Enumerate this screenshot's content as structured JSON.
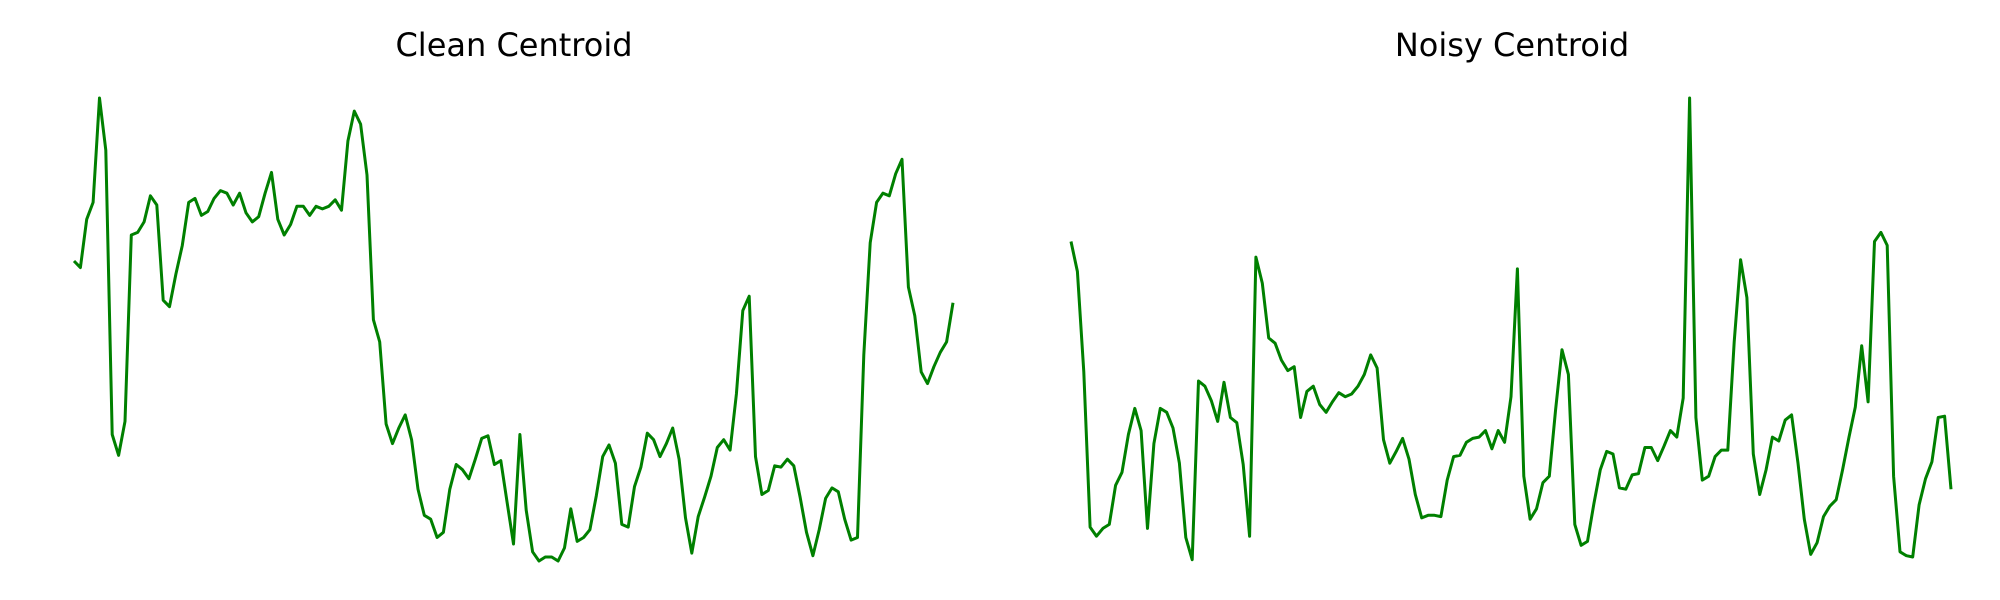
{
  "chart_data": [
    {
      "type": "line",
      "title": "Clean Centroid",
      "color": "#008000",
      "ylim": [
        20,
        395
      ],
      "values": [
        260,
        255,
        292,
        305,
        385,
        345,
        127,
        111,
        137,
        280,
        282,
        290,
        310,
        303,
        230,
        225,
        250,
        272,
        305,
        308,
        295,
        298,
        308,
        314,
        312,
        303,
        312,
        297,
        290,
        294,
        312,
        328,
        292,
        280,
        288,
        302,
        302,
        295,
        302,
        300,
        302,
        307,
        299,
        352,
        375,
        365,
        326,
        215,
        198,
        135,
        120,
        132,
        142,
        123,
        85,
        65,
        62,
        48,
        52,
        85,
        104,
        100,
        93,
        108,
        124,
        126,
        104,
        107,
        75,
        43,
        127,
        69,
        37,
        30,
        33,
        33,
        30,
        40,
        70,
        45,
        48,
        54,
        80,
        110,
        119,
        105,
        58,
        56,
        87,
        102,
        128,
        123,
        110,
        120,
        132,
        108,
        63,
        36,
        64,
        79,
        95,
        117,
        123,
        115,
        158,
        222,
        233,
        110,
        81,
        84,
        103,
        102,
        108,
        103,
        79,
        52,
        34,
        54,
        78,
        86,
        83,
        62,
        46,
        48,
        188,
        274,
        305,
        312,
        310,
        327,
        338,
        240,
        218,
        175,
        166,
        179,
        190,
        198,
        228
      ]
    },
    {
      "type": "line",
      "title": "Noisy Centroid",
      "color": "#008000",
      "ylim": [
        20,
        395
      ],
      "values": [
        275,
        252,
        175,
        56,
        49,
        55,
        58,
        88,
        98,
        127,
        147,
        130,
        55,
        120,
        147,
        144,
        132,
        105,
        48,
        31,
        168,
        164,
        153,
        137,
        167,
        140,
        136,
        104,
        49,
        263,
        243,
        201,
        197,
        184,
        176,
        179,
        140,
        160,
        164,
        150,
        144,
        152,
        159,
        156,
        158,
        164,
        173,
        188,
        178,
        123,
        105,
        114,
        124,
        108,
        81,
        63,
        65,
        65,
        64,
        92,
        110,
        111,
        121,
        124,
        125,
        130,
        116,
        130,
        121,
        156,
        254,
        95,
        62,
        70,
        90,
        95,
        146,
        192,
        173,
        58,
        42,
        45,
        74,
        100,
        114,
        112,
        86,
        85,
        96,
        97,
        117,
        117,
        107,
        118,
        130,
        125,
        155,
        385,
        140,
        92,
        95,
        110,
        115,
        115,
        198,
        261,
        232,
        112,
        81,
        100,
        125,
        122,
        138,
        142,
        105,
        62,
        35,
        44,
        64,
        72,
        77,
        100,
        125,
        148,
        195,
        152,
        275,
        282,
        272,
        95,
        37,
        34,
        33,
        73,
        93,
        106,
        140,
        141,
        85
      ]
    }
  ]
}
